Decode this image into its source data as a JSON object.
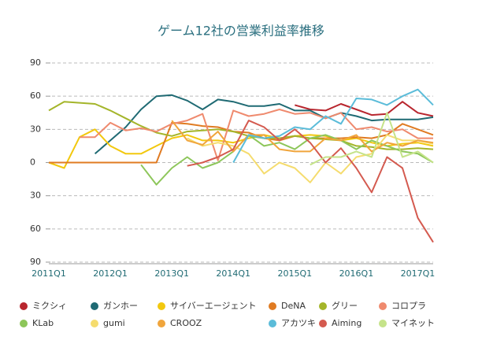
{
  "chart_data": {
    "type": "line",
    "title": "ゲーム12社の営業利益率推移",
    "categories": [
      "2011Q1",
      null,
      null,
      null,
      "2012Q1",
      null,
      null,
      null,
      "2013Q1",
      null,
      null,
      null,
      "2014Q1",
      null,
      null,
      null,
      "2015Q1",
      null,
      null,
      null,
      "2016Q1",
      null,
      null,
      null,
      "2017Q1",
      null
    ],
    "ylim": [
      -90,
      90
    ],
    "yticks": [
      {
        "value": -90,
        "label": "90"
      },
      {
        "value": -60,
        "label": "60"
      },
      {
        "value": -30,
        "label": "30"
      },
      0,
      30,
      60,
      90
    ],
    "grid": true,
    "legend": "bottom",
    "series": [
      {
        "name": "ミクシィ",
        "color": "#b8262e",
        "values": [
          null,
          null,
          null,
          null,
          null,
          null,
          null,
          null,
          null,
          null,
          null,
          null,
          null,
          null,
          null,
          null,
          52,
          48,
          47,
          53,
          48,
          43,
          44,
          55,
          45,
          42
        ]
      },
      {
        "name": "ガンホー",
        "color": "#1f6a73",
        "values": [
          null,
          null,
          null,
          8,
          20,
          32,
          48,
          60,
          61,
          56,
          48,
          57,
          55,
          51,
          51,
          53,
          47,
          47,
          40,
          45,
          42,
          38,
          39,
          39,
          39,
          41
        ]
      },
      {
        "name": "サイバーエージェント",
        "color": "#f2c80f",
        "values": [
          0,
          -5,
          23,
          30,
          15,
          8,
          8,
          15,
          22,
          25,
          20,
          20,
          18,
          22,
          25,
          22,
          24,
          25,
          24,
          20,
          22,
          18,
          15,
          17,
          18,
          15
        ]
      },
      {
        "name": "DeNA",
        "color": "#e07b22",
        "values": [
          0,
          0,
          0,
          0,
          0,
          0,
          0,
          0,
          36,
          35,
          33,
          32,
          28,
          27,
          22,
          20,
          24,
          22,
          22,
          22,
          23,
          22,
          25,
          35,
          30,
          25
        ]
      },
      {
        "name": "グリー",
        "color": "#a4b52a",
        "values": [
          47,
          55,
          54,
          53,
          47,
          40,
          33,
          27,
          24,
          28,
          29,
          30,
          28,
          24,
          22,
          22,
          24,
          22,
          21,
          20,
          15,
          14,
          12,
          12,
          13,
          12
        ]
      },
      {
        "name": "コロプラ",
        "color": "#ef8a6e",
        "values": [
          null,
          null,
          23,
          23,
          36,
          29,
          31,
          28,
          35,
          38,
          44,
          2,
          47,
          42,
          44,
          48,
          44,
          45,
          40,
          45,
          30,
          32,
          28,
          30,
          22,
          22
        ]
      },
      {
        "name": "KLab",
        "color": "#8dc65a",
        "values": [
          null,
          null,
          null,
          null,
          null,
          null,
          -2,
          -20,
          -5,
          5,
          -5,
          0,
          10,
          25,
          15,
          18,
          12,
          22,
          25,
          20,
          12,
          20,
          15,
          10,
          8,
          0
        ]
      },
      {
        "name": "gumi",
        "color": "#f5dc6e",
        "values": [
          null,
          null,
          null,
          null,
          null,
          null,
          null,
          null,
          null,
          22,
          15,
          18,
          15,
          8,
          -10,
          0,
          -5,
          -18,
          0,
          -10,
          5,
          8,
          25,
          20,
          20,
          17
        ]
      },
      {
        "name": "CROOZ",
        "color": "#f0a53c",
        "values": [
          null,
          null,
          null,
          null,
          null,
          null,
          null,
          null,
          38,
          20,
          16,
          28,
          10,
          25,
          25,
          12,
          10,
          10,
          22,
          20,
          25,
          10,
          18,
          15,
          20,
          18
        ]
      },
      {
        "name": "アカツキ",
        "color": "#5bbcd9",
        "values": [
          null,
          null,
          null,
          null,
          null,
          null,
          null,
          null,
          null,
          null,
          null,
          null,
          0,
          25,
          22,
          24,
          32,
          30,
          42,
          35,
          58,
          57,
          52,
          60,
          66,
          52
        ]
      },
      {
        "name": "Aiming",
        "color": "#d45a4f",
        "values": [
          null,
          null,
          null,
          null,
          null,
          null,
          null,
          null,
          null,
          -3,
          0,
          5,
          12,
          38,
          32,
          20,
          30,
          18,
          0,
          13,
          -5,
          -27,
          5,
          -5,
          -50,
          -72
        ]
      },
      {
        "name": "マイネット",
        "color": "#c5e38a",
        "values": [
          null,
          null,
          null,
          null,
          null,
          null,
          null,
          null,
          null,
          null,
          null,
          null,
          null,
          null,
          null,
          null,
          null,
          -2,
          5,
          5,
          10,
          5,
          45,
          5,
          10,
          0
        ]
      }
    ]
  }
}
